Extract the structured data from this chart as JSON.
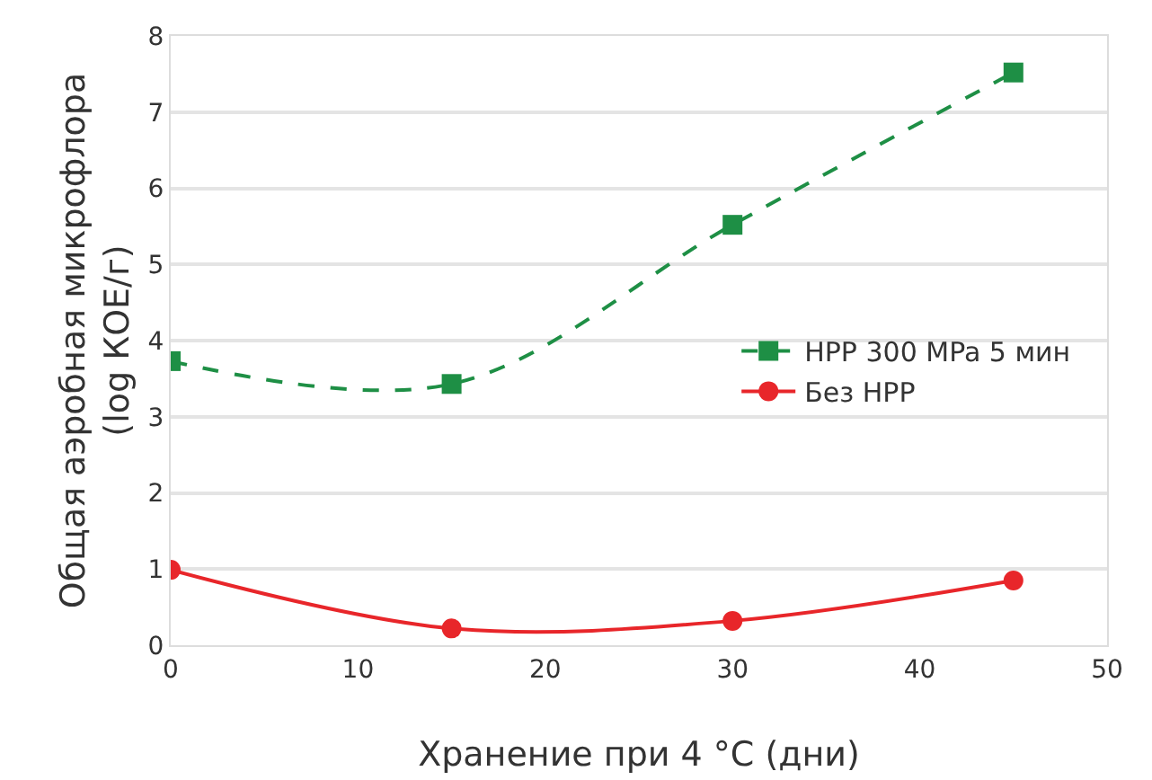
{
  "chart_data": {
    "type": "line",
    "xlabel": "Хранение при 4 °C (дни)",
    "ylabel": "Общая аэробная микрофлора\n(log КОЕ/г)",
    "x": [
      0,
      15,
      30,
      45
    ],
    "series": [
      {
        "name": "HPP 300 MPa 5 мин",
        "color": "#1e8f45",
        "values": [
          3.73,
          3.43,
          5.52,
          7.52
        ],
        "marker": "square",
        "line_style": "dashed"
      },
      {
        "name": "Без HPP",
        "color": "#e8262a",
        "values": [
          0.99,
          0.22,
          0.32,
          0.85
        ],
        "marker": "circle",
        "line_style": "solid"
      }
    ],
    "xlim": [
      0,
      50
    ],
    "xticks": [
      0,
      10,
      20,
      30,
      40,
      50
    ],
    "ylim": [
      0,
      8
    ],
    "yticks": [
      0,
      1,
      2,
      3,
      4,
      5,
      6,
      7,
      8
    ],
    "grid": "y",
    "legend": "right"
  }
}
